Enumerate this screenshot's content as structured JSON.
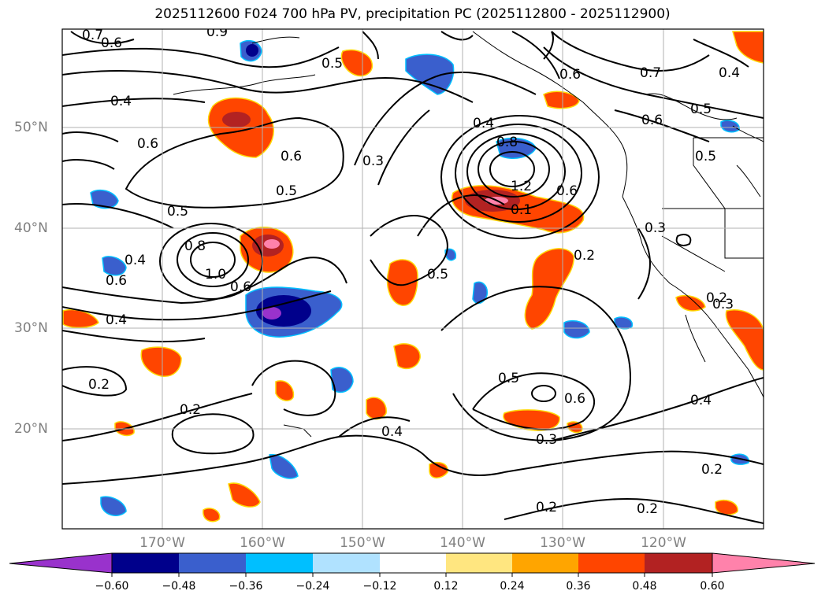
{
  "title": "2025112600 F024 700 hPa PV, precipitation PC (2025112800 - 2025112900)",
  "longitude_labels": [
    "170°W",
    "160°W",
    "150°W",
    "140°W",
    "130°W",
    "120°W"
  ],
  "latitude_labels": [
    "50°N",
    "40°N",
    "30°N",
    "20°N"
  ],
  "contour_labels": [
    "0.7",
    "0.6",
    "0.4",
    "0.6",
    "0.6",
    "0.5",
    "0.5",
    "0.4",
    "0.8",
    "1.0",
    "0.6",
    "0.4",
    "0.3",
    "0.4",
    "0.8",
    "1.2",
    "0.6",
    "0.5",
    "0.3",
    "0.2",
    "0.2",
    "0.2",
    "0.4",
    "0.5",
    "0.6",
    "0.3",
    "0.2",
    "0.2",
    "0.2",
    "0.4",
    "0.6",
    "0.7",
    "0.6",
    "0.5",
    "0.5",
    "0.4",
    "0.2",
    "0.1",
    "0.9",
    "0.5",
    "0.6",
    "0.3"
  ],
  "colorbar": {
    "ticks": [
      "−0.60",
      "−0.48",
      "−0.36",
      "−0.24",
      "−0.12",
      "0.12",
      "0.24",
      "0.36",
      "0.48",
      "0.60"
    ],
    "colors": [
      "#9932cc",
      "#00008b",
      "#3a5fcd",
      "#00bfff",
      "#b0e2ff",
      "#ffffff",
      "#ffe680",
      "#ffa500",
      "#ff4500",
      "#b22222",
      "#ff82ab"
    ]
  }
}
